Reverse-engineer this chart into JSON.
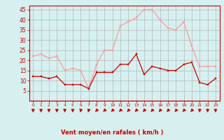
{
  "hours": [
    0,
    1,
    2,
    3,
    4,
    5,
    6,
    7,
    8,
    9,
    10,
    11,
    12,
    13,
    14,
    15,
    16,
    17,
    18,
    19,
    20,
    21,
    22,
    23
  ],
  "wind_avg": [
    12,
    12,
    11,
    12,
    8,
    8,
    8,
    6,
    14,
    14,
    14,
    18,
    18,
    23,
    13,
    17,
    16,
    15,
    15,
    18,
    19,
    9,
    8,
    11
  ],
  "wind_gust": [
    22,
    23,
    21,
    22,
    15,
    16,
    15,
    6,
    18,
    25,
    25,
    37,
    39,
    41,
    45,
    45,
    40,
    36,
    35,
    39,
    27,
    17,
    17,
    17
  ],
  "wind_avg_color": "#cc0000",
  "wind_gust_color": "#ff9999",
  "bg_color": "#d6f0f0",
  "grid_color": "#aaaaaa",
  "axis_color": "#cc0000",
  "tick_color": "#cc0000",
  "xlabel": "Vent moyen/en rafales ( km/h )",
  "ylim": [
    0,
    47
  ],
  "yticks": [
    5,
    10,
    15,
    20,
    25,
    30,
    35,
    40,
    45
  ],
  "arrow_angles_deg": [
    270,
    270,
    270,
    270,
    270,
    270,
    255,
    255,
    225,
    225,
    225,
    225,
    225,
    225,
    225,
    225,
    225,
    225,
    225,
    225,
    225,
    270,
    270,
    270
  ]
}
